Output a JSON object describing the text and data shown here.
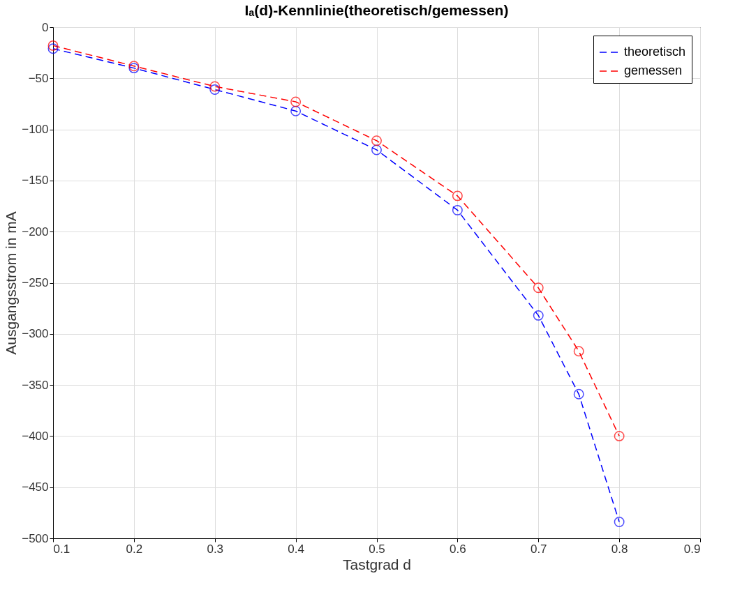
{
  "chart_data": {
    "type": "line",
    "title": "Iₐ(d)-Kennlinie(theoretisch/gemessen)",
    "xlabel": "Tastgrad d",
    "ylabel": "Ausgangsstrom in mA",
    "x": [
      0.1,
      0.2,
      0.3,
      0.4,
      0.5,
      0.6,
      0.7,
      0.75,
      0.8
    ],
    "series": [
      {
        "name": "theoretisch",
        "color": "#0000ff",
        "values": [
          -21,
          -40,
          -61,
          -82,
          -120,
          -179,
          -282,
          -359,
          -484
        ]
      },
      {
        "name": "gemessen",
        "color": "#ff0000",
        "values": [
          -18,
          -38,
          -58,
          -73,
          -111,
          -165,
          -255,
          -317,
          -400
        ]
      }
    ],
    "xlim": [
      0.1,
      0.9
    ],
    "xticks": [
      0.1,
      0.2,
      0.3,
      0.4,
      0.5,
      0.6,
      0.7,
      0.8,
      0.9
    ],
    "ylim": [
      -500,
      0
    ],
    "yticks": [
      0,
      -50,
      -100,
      -150,
      -200,
      -250,
      -300,
      -350,
      -400,
      -450,
      -500
    ],
    "grid": true,
    "legend": "top right",
    "marker": "circle",
    "line_style": "dashed"
  }
}
